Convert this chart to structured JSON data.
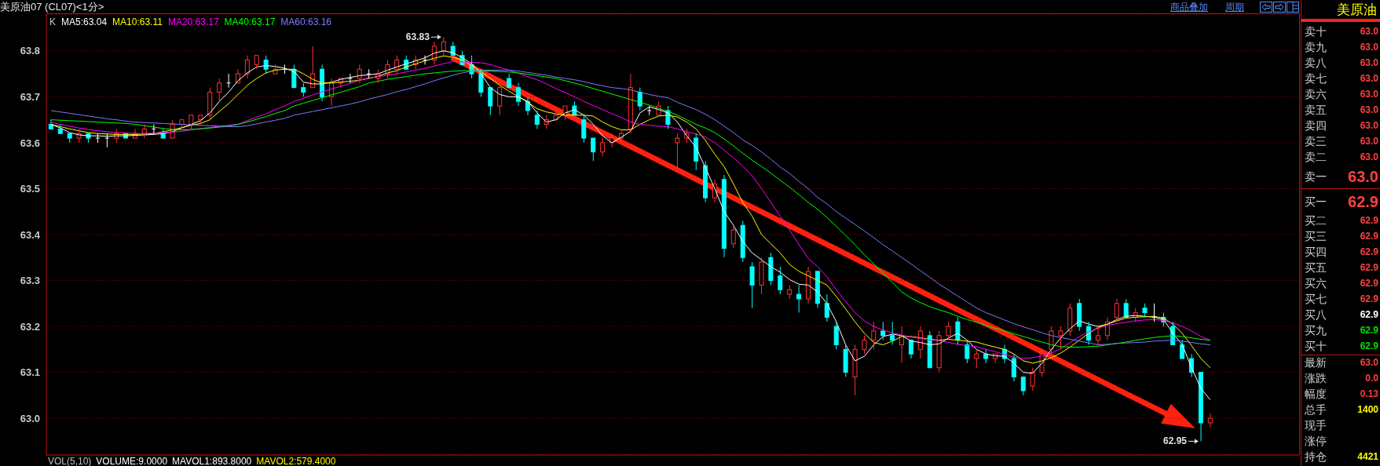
{
  "chart_data": [
    {
      "type": "candlestick",
      "title": "美原油07 (CL07)<1分>",
      "legend_title": "K",
      "legend": "top left",
      "grid": "y",
      "tick_labels": "y",
      "ylim": [
        62.92,
        63.88
      ],
      "yticks": [
        {
          "value": 63.0,
          "label": "63.0"
        },
        63.1,
        63.2,
        63.3,
        63.4,
        63.5,
        63.6,
        63.7,
        63.8
      ],
      "categories": [
        null,
        null,
        null,
        null,
        null,
        null,
        null,
        null,
        null,
        null,
        null,
        null,
        null,
        null,
        null,
        null,
        null,
        null,
        null,
        null,
        null,
        null,
        null,
        null,
        null,
        null,
        null,
        null,
        null,
        null,
        null,
        null,
        null,
        null,
        null,
        null,
        null,
        null,
        null,
        null,
        null,
        null,
        null,
        null,
        null,
        null,
        null,
        null,
        null,
        null,
        null,
        null,
        null,
        null,
        null,
        null,
        null,
        null,
        null,
        null,
        null,
        null,
        null,
        null,
        null,
        null,
        null,
        null,
        null,
        null,
        null,
        null,
        null,
        null,
        null,
        null,
        null,
        null,
        null,
        null,
        null,
        null,
        null,
        null,
        null,
        null,
        null,
        null,
        null,
        null,
        null,
        null,
        null,
        null,
        null,
        null,
        null,
        null,
        null,
        null,
        null,
        null,
        null,
        null,
        null,
        null,
        null,
        null,
        null,
        null,
        null,
        null,
        null,
        null,
        null,
        null,
        null,
        null,
        null,
        null,
        null,
        null,
        null,
        null,
        null,
        null,
        null,
        null,
        null,
        null,
        null,
        null,
        null,
        null
      ],
      "ohlc": [
        [
          63.64,
          63.65,
          63.63,
          63.63
        ],
        [
          63.63,
          63.64,
          63.62,
          63.62
        ],
        [
          63.62,
          63.62,
          63.6,
          63.61
        ],
        [
          63.61,
          63.63,
          63.6,
          63.62
        ],
        [
          63.62,
          63.62,
          63.6,
          63.61
        ],
        [
          63.61,
          63.62,
          63.6,
          63.61
        ],
        [
          63.61,
          63.62,
          63.59,
          63.61
        ],
        [
          63.61,
          63.63,
          63.6,
          63.62
        ],
        [
          63.62,
          63.62,
          63.61,
          63.61
        ],
        [
          63.61,
          63.63,
          63.61,
          63.62
        ],
        [
          63.62,
          63.64,
          63.61,
          63.63
        ],
        [
          63.63,
          63.64,
          63.62,
          63.63
        ],
        [
          63.62,
          63.63,
          63.61,
          63.61
        ],
        [
          63.61,
          63.65,
          63.61,
          63.64
        ],
        [
          63.64,
          63.65,
          63.63,
          63.65
        ],
        [
          63.64,
          63.66,
          63.63,
          63.66
        ],
        [
          63.65,
          63.66,
          63.64,
          63.66
        ],
        [
          63.66,
          63.72,
          63.65,
          63.71
        ],
        [
          63.71,
          63.74,
          63.69,
          63.73
        ],
        [
          63.73,
          63.75,
          63.72,
          63.73
        ],
        [
          63.73,
          63.76,
          63.73,
          63.75
        ],
        [
          63.75,
          63.79,
          63.74,
          63.78
        ],
        [
          63.77,
          63.79,
          63.76,
          63.79
        ],
        [
          63.78,
          63.79,
          63.75,
          63.76
        ],
        [
          63.75,
          63.77,
          63.75,
          63.76
        ],
        [
          63.76,
          63.77,
          63.75,
          63.76
        ],
        [
          63.76,
          63.77,
          63.72,
          63.72
        ],
        [
          63.72,
          63.73,
          63.7,
          63.71
        ],
        [
          63.72,
          63.81,
          63.72,
          63.75
        ],
        [
          63.76,
          63.77,
          63.69,
          63.7
        ],
        [
          63.7,
          63.74,
          63.68,
          63.73
        ],
        [
          63.73,
          63.74,
          63.72,
          63.74
        ],
        [
          63.74,
          63.75,
          63.73,
          63.74
        ],
        [
          63.74,
          63.77,
          63.73,
          63.76
        ],
        [
          63.75,
          63.76,
          63.74,
          63.75
        ],
        [
          63.74,
          63.76,
          63.73,
          63.75
        ],
        [
          63.75,
          63.78,
          63.74,
          63.77
        ],
        [
          63.76,
          63.79,
          63.75,
          63.78
        ],
        [
          63.78,
          63.79,
          63.76,
          63.76
        ],
        [
          63.77,
          63.79,
          63.76,
          63.78
        ],
        [
          63.78,
          63.79,
          63.77,
          63.78
        ],
        [
          63.78,
          63.82,
          63.77,
          63.81
        ],
        [
          63.8,
          63.83,
          63.79,
          63.82
        ],
        [
          63.81,
          63.82,
          63.79,
          63.79
        ],
        [
          63.79,
          63.8,
          63.77,
          63.77
        ],
        [
          63.77,
          63.79,
          63.74,
          63.75
        ],
        [
          63.75,
          63.76,
          63.7,
          63.71
        ],
        [
          63.72,
          63.72,
          63.66,
          63.68
        ],
        [
          63.68,
          63.73,
          63.66,
          63.72
        ],
        [
          63.74,
          63.75,
          63.72,
          63.72
        ],
        [
          63.72,
          63.73,
          63.68,
          63.69
        ],
        [
          63.69,
          63.7,
          63.66,
          63.67
        ],
        [
          63.66,
          63.67,
          63.63,
          63.64
        ],
        [
          63.64,
          63.66,
          63.63,
          63.65
        ],
        [
          63.65,
          63.67,
          63.65,
          63.66
        ],
        [
          63.66,
          63.68,
          63.65,
          63.68
        ],
        [
          63.68,
          63.69,
          63.66,
          63.66
        ],
        [
          63.65,
          63.66,
          63.6,
          63.61
        ],
        [
          63.61,
          63.61,
          63.56,
          63.58
        ],
        [
          63.58,
          63.61,
          63.57,
          63.6
        ],
        [
          63.6,
          63.62,
          63.59,
          63.61
        ],
        [
          63.61,
          63.63,
          63.6,
          63.62
        ],
        [
          63.63,
          63.75,
          63.62,
          63.72
        ],
        [
          63.71,
          63.72,
          63.67,
          63.68
        ],
        [
          63.67,
          63.68,
          63.66,
          63.67
        ],
        [
          63.66,
          63.69,
          63.66,
          63.68
        ],
        [
          63.67,
          63.68,
          63.63,
          63.64
        ],
        [
          63.6,
          63.62,
          63.54,
          63.61
        ],
        [
          63.61,
          63.63,
          63.6,
          63.62
        ],
        [
          63.61,
          63.62,
          63.54,
          63.56
        ],
        [
          63.55,
          63.56,
          63.47,
          63.48
        ],
        [
          63.48,
          63.52,
          63.47,
          63.51
        ],
        [
          63.52,
          63.53,
          63.35,
          63.37
        ],
        [
          63.38,
          63.42,
          63.37,
          63.41
        ],
        [
          63.42,
          63.43,
          63.34,
          63.35
        ],
        [
          63.33,
          63.34,
          63.24,
          63.29
        ],
        [
          63.29,
          63.35,
          63.27,
          63.34
        ],
        [
          63.35,
          63.36,
          63.29,
          63.3
        ],
        [
          63.31,
          63.33,
          63.27,
          63.28
        ],
        [
          63.27,
          63.29,
          63.26,
          63.28
        ],
        [
          63.27,
          63.29,
          63.23,
          63.26
        ],
        [
          63.26,
          63.33,
          63.25,
          63.32
        ],
        [
          63.32,
          63.32,
          63.24,
          63.25
        ],
        [
          63.25,
          63.27,
          63.21,
          63.22
        ],
        [
          63.2,
          63.21,
          63.15,
          63.16
        ],
        [
          63.15,
          63.16,
          63.09,
          63.1
        ],
        [
          63.09,
          63.16,
          63.05,
          63.15
        ],
        [
          63.15,
          63.18,
          63.14,
          63.17
        ],
        [
          63.17,
          63.21,
          63.15,
          63.19
        ],
        [
          63.19,
          63.21,
          63.17,
          63.18
        ],
        [
          63.18,
          63.21,
          63.16,
          63.17
        ],
        [
          63.16,
          63.2,
          63.12,
          63.18
        ],
        [
          63.17,
          63.17,
          63.13,
          63.14
        ],
        [
          63.15,
          63.2,
          63.13,
          63.19
        ],
        [
          63.18,
          63.19,
          63.11,
          63.11
        ],
        [
          63.11,
          63.19,
          63.1,
          63.18
        ],
        [
          63.18,
          63.21,
          63.17,
          63.2
        ],
        [
          63.21,
          63.22,
          63.16,
          63.17
        ],
        [
          63.16,
          63.17,
          63.12,
          63.13
        ],
        [
          63.13,
          63.15,
          63.11,
          63.14
        ],
        [
          63.14,
          63.15,
          63.12,
          63.13
        ],
        [
          63.13,
          63.14,
          63.12,
          63.14
        ],
        [
          63.15,
          63.16,
          63.12,
          63.13
        ],
        [
          63.13,
          63.14,
          63.08,
          63.09
        ],
        [
          63.09,
          63.09,
          63.05,
          63.06
        ],
        [
          63.07,
          63.11,
          63.06,
          63.1
        ],
        [
          63.1,
          63.15,
          63.09,
          63.14
        ],
        [
          63.15,
          63.2,
          63.14,
          63.19
        ],
        [
          63.18,
          63.2,
          63.15,
          63.19
        ],
        [
          63.19,
          63.25,
          63.18,
          63.24
        ],
        [
          63.25,
          63.26,
          63.19,
          63.2
        ],
        [
          63.2,
          63.21,
          63.16,
          63.17
        ],
        [
          63.17,
          63.2,
          63.16,
          63.18
        ],
        [
          63.18,
          63.22,
          63.17,
          63.21
        ],
        [
          63.22,
          63.26,
          63.21,
          63.25
        ],
        [
          63.25,
          63.26,
          63.22,
          63.22
        ],
        [
          63.22,
          63.24,
          63.21,
          63.23
        ],
        [
          63.24,
          63.25,
          63.22,
          63.23
        ],
        [
          63.22,
          63.25,
          63.21,
          63.22
        ],
        [
          63.22,
          63.23,
          63.2,
          63.21
        ],
        [
          63.2,
          63.21,
          63.16,
          63.16
        ],
        [
          63.16,
          63.17,
          63.13,
          63.13
        ],
        [
          63.13,
          63.14,
          63.09,
          63.1
        ],
        [
          63.1,
          63.1,
          62.95,
          62.99
        ],
        [
          62.99,
          63.01,
          62.98,
          63.0
        ],
        null,
        null,
        null,
        null,
        null,
        null,
        null,
        null,
        null
      ],
      "series": [
        {
          "name": "MA5:63.04",
          "type": "line",
          "color": "#ffffff",
          "values": [
            63.64,
            63.632,
            63.622,
            63.617,
            63.615,
            63.615,
            63.614,
            63.615,
            63.615,
            63.616,
            63.617,
            63.618,
            63.62,
            63.624,
            63.632,
            63.64,
            63.648,
            63.665,
            63.69,
            63.71,
            63.735,
            63.752,
            63.765,
            63.768,
            63.766,
            63.762,
            63.755,
            63.732,
            63.728,
            63.728,
            63.732,
            63.738,
            63.742,
            63.746,
            63.748,
            63.75,
            63.758,
            63.765,
            63.772,
            63.778,
            63.785,
            63.795,
            63.8,
            63.796,
            63.785,
            63.772,
            63.75,
            63.72,
            63.705,
            63.7,
            63.7,
            63.69,
            63.665,
            63.645,
            63.65,
            63.665,
            63.672,
            63.66,
            63.64,
            63.615,
            63.6,
            63.612,
            63.625,
            63.665,
            63.678,
            63.672,
            63.665,
            63.645,
            63.615,
            63.59,
            63.545,
            63.5,
            63.45,
            63.42,
            63.385,
            63.36,
            63.345,
            63.33,
            63.318,
            63.302,
            63.292,
            63.29,
            63.275,
            63.25,
            63.21,
            63.16,
            63.125,
            63.135,
            63.16,
            63.178,
            63.183,
            63.18,
            63.168,
            63.165,
            63.16,
            63.162,
            63.175,
            63.185,
            63.17,
            63.15,
            63.14,
            63.136,
            63.135,
            63.12,
            63.1,
            63.098,
            63.12,
            63.15,
            63.175,
            63.195,
            63.212,
            63.205,
            63.2,
            63.205,
            63.215,
            63.222,
            63.224,
            63.222,
            63.22,
            63.215,
            63.185,
            63.16,
            63.11,
            63.065,
            63.04,
            null,
            null,
            null,
            null,
            null,
            null,
            null,
            null,
            null
          ]
        },
        {
          "name": "MA10:63.11",
          "type": "line",
          "color": "#ffff00",
          "values": [
            63.64,
            63.635,
            63.63,
            63.626,
            63.622,
            63.62,
            63.619,
            63.618,
            63.618,
            63.618,
            63.619,
            63.62,
            63.624,
            63.628,
            63.633,
            63.638,
            63.642,
            63.65,
            63.668,
            63.685,
            63.705,
            63.725,
            63.74,
            63.752,
            63.758,
            63.76,
            63.76,
            63.75,
            63.738,
            63.73,
            63.73,
            63.732,
            63.734,
            63.736,
            63.74,
            63.745,
            63.752,
            63.757,
            63.765,
            63.772,
            63.778,
            63.784,
            63.789,
            63.786,
            63.78,
            63.768,
            63.755,
            63.74,
            63.725,
            63.712,
            63.7,
            63.688,
            63.674,
            63.667,
            63.663,
            63.66,
            63.66,
            63.66,
            63.658,
            63.645,
            63.635,
            63.628,
            63.628,
            63.64,
            63.65,
            63.658,
            63.66,
            63.656,
            63.645,
            63.63,
            63.605,
            63.575,
            63.548,
            63.51,
            63.47,
            63.44,
            63.4,
            63.38,
            63.36,
            63.335,
            63.32,
            63.31,
            63.3,
            63.29,
            63.265,
            63.238,
            63.21,
            63.185,
            63.165,
            63.16,
            63.168,
            63.178,
            63.178,
            63.175,
            63.172,
            63.17,
            63.172,
            63.17,
            63.168,
            63.166,
            63.16,
            63.155,
            63.15,
            63.14,
            63.125,
            63.12,
            63.125,
            63.132,
            63.142,
            63.155,
            63.17,
            63.185,
            63.198,
            63.205,
            63.212,
            63.218,
            63.22,
            63.221,
            63.222,
            63.218,
            63.205,
            63.185,
            63.158,
            63.13,
            63.11,
            null,
            null,
            null,
            null,
            null,
            null,
            null,
            null,
            null
          ]
        },
        {
          "name": "MA20:63.17",
          "type": "line",
          "color": "#ff00ff",
          "values": [
            63.645,
            63.64,
            63.636,
            63.632,
            63.629,
            63.626,
            63.624,
            63.622,
            63.621,
            63.62,
            63.62,
            63.621,
            63.622,
            63.623,
            63.625,
            63.628,
            63.631,
            63.633,
            63.636,
            63.638,
            63.64,
            63.648,
            63.656,
            63.663,
            63.672,
            63.68,
            63.69,
            63.697,
            63.704,
            63.711,
            63.717,
            63.723,
            63.729,
            63.736,
            63.741,
            63.744,
            63.747,
            63.75,
            63.754,
            63.758,
            63.762,
            63.767,
            63.772,
            63.777,
            63.776,
            63.775,
            63.774,
            63.77,
            63.764,
            63.758,
            63.751,
            63.744,
            63.737,
            63.728,
            63.718,
            63.709,
            63.7,
            63.69,
            63.681,
            63.672,
            63.663,
            63.655,
            63.645,
            63.64,
            63.638,
            63.636,
            63.635,
            63.63,
            63.624,
            63.619,
            63.612,
            63.6,
            63.584,
            63.567,
            63.549,
            63.528,
            63.5,
            63.47,
            63.44,
            63.41,
            63.378,
            63.348,
            63.33,
            63.308,
            63.28,
            63.254,
            63.23,
            63.212,
            63.2,
            63.192,
            63.186,
            63.181,
            63.177,
            63.174,
            63.171,
            63.169,
            63.165,
            63.161,
            63.158,
            63.156,
            63.15,
            63.145,
            63.139,
            63.133,
            63.13,
            63.132,
            63.136,
            63.142,
            63.152,
            63.165,
            63.178,
            63.188,
            63.196,
            63.202,
            63.206,
            63.209,
            63.212,
            63.214,
            63.215,
            63.213,
            63.207,
            63.2,
            63.19,
            63.178,
            63.17,
            null,
            null,
            null,
            null,
            null,
            null,
            null,
            null,
            null
          ]
        },
        {
          "name": "MA40:63.17",
          "type": "line",
          "color": "#00ff00",
          "values": [
            63.65,
            63.649,
            63.648,
            63.647,
            63.646,
            63.645,
            63.644,
            63.643,
            63.642,
            63.64,
            63.637,
            63.634,
            63.631,
            63.629,
            63.628,
            63.629,
            63.63,
            63.632,
            63.634,
            63.636,
            63.64,
            63.645,
            63.651,
            63.657,
            63.664,
            63.67,
            63.68,
            63.686,
            63.692,
            63.698,
            63.704,
            63.71,
            63.716,
            63.722,
            63.73,
            63.734,
            63.738,
            63.741,
            63.744,
            63.747,
            63.75,
            63.752,
            63.754,
            63.756,
            63.757,
            63.757,
            63.757,
            63.756,
            63.755,
            63.754,
            63.752,
            63.749,
            63.746,
            63.743,
            63.74,
            63.735,
            63.73,
            63.724,
            63.718,
            63.712,
            63.706,
            63.7,
            63.694,
            63.688,
            63.682,
            63.675,
            63.668,
            63.66,
            63.65,
            63.64,
            63.632,
            63.622,
            63.608,
            63.593,
            63.577,
            63.562,
            63.548,
            63.534,
            63.518,
            63.503,
            63.487,
            63.47,
            63.455,
            63.437,
            63.418,
            63.398,
            63.378,
            63.356,
            63.336,
            63.316,
            63.296,
            63.275,
            63.262,
            63.252,
            63.243,
            63.236,
            63.23,
            63.222,
            63.215,
            63.209,
            63.202,
            63.196,
            63.19,
            63.184,
            63.178,
            63.172,
            63.166,
            63.16,
            63.156,
            63.155,
            63.155,
            63.156,
            63.157,
            63.16,
            63.163,
            63.166,
            63.17,
            63.173,
            63.176,
            63.178,
            63.18,
            63.178,
            63.175,
            63.172,
            63.17,
            null,
            null,
            null,
            null,
            null,
            null,
            null,
            null,
            null
          ]
        },
        {
          "name": "MA60:63.16",
          "type": "line",
          "color": "#7b7bff",
          "values": [
            63.67,
            63.667,
            63.664,
            63.661,
            63.658,
            63.655,
            63.652,
            63.65,
            63.647,
            63.645,
            63.644,
            63.643,
            63.642,
            63.641,
            63.64,
            63.639,
            63.638,
            63.637,
            63.636,
            63.635,
            63.635,
            63.637,
            63.641,
            63.645,
            63.649,
            63.653,
            63.66,
            63.664,
            63.668,
            63.672,
            63.676,
            63.68,
            63.684,
            63.689,
            63.695,
            63.7,
            63.705,
            63.711,
            63.716,
            63.722,
            63.728,
            63.735,
            63.741,
            63.747,
            63.752,
            63.756,
            63.758,
            63.758,
            63.758,
            63.758,
            63.756,
            63.753,
            63.75,
            63.747,
            63.743,
            63.74,
            63.737,
            63.733,
            63.728,
            63.724,
            63.72,
            63.718,
            63.715,
            63.71,
            63.705,
            63.701,
            63.698,
            63.688,
            63.68,
            63.672,
            63.662,
            63.65,
            63.636,
            63.622,
            63.606,
            63.594,
            63.58,
            63.564,
            63.547,
            63.533,
            63.516,
            63.5,
            63.481,
            63.467,
            63.45,
            63.436,
            63.422,
            63.408,
            63.393,
            63.378,
            63.364,
            63.35,
            63.336,
            63.321,
            63.307,
            63.292,
            63.279,
            63.266,
            63.253,
            63.24,
            63.23,
            63.222,
            63.214,
            63.206,
            63.199,
            63.193,
            63.186,
            63.18,
            63.176,
            63.172,
            63.168,
            63.164,
            63.16,
            63.161,
            63.163,
            63.164,
            63.165,
            63.166,
            63.168,
            63.169,
            63.17,
            63.168,
            63.165,
            63.162,
            63.16,
            null,
            null,
            null,
            null,
            null,
            null,
            null,
            null,
            null
          ]
        }
      ],
      "annotations": [
        "63.83",
        "62.95",
        "VOL(5,10)",
        "VOLUME:9.0000",
        "MAVOL1:893.8000",
        "MAVOL2:579.4000",
        "商品叠加",
        "周期"
      ]
    },
    {
      "type": "other",
      "title": "美原油",
      "categories": [
        "卖十",
        "卖九",
        "卖八",
        "卖七",
        "卖六",
        "卖五",
        "卖四",
        "卖三",
        "卖二",
        "卖一",
        "买一",
        "买二",
        "买三",
        "买四",
        "买五",
        "买六",
        "买七",
        "买八",
        "买九",
        "买十",
        "最新",
        "涨跌",
        "幅度",
        "总手",
        "现手",
        "涨停",
        "持仓"
      ],
      "value_labels": [
        "63.0",
        "63.0",
        "63.0",
        "63.0",
        "63.0",
        "63.0",
        "63.0",
        "63.0",
        "63.0",
        "63.0",
        "62.9",
        "62.9",
        "62.9",
        "62.9",
        "62.9",
        "62.9",
        "62.9",
        "62.9",
        "62.9",
        "62.9",
        "63.0",
        "0.0",
        "0.13",
        "1400",
        null,
        null,
        "4421"
      ],
      "colors": [
        "#ff4040",
        "#ff4040",
        "#ff4040",
        "#ff4040",
        "#ff4040",
        "#ff4040",
        "#ff4040",
        "#ff4040",
        "#ff4040",
        "#ff4040",
        "#ff4040",
        "#ff4040",
        "#ff4040",
        "#ff4040",
        "#ff4040",
        "#ff4040",
        "#ff4040",
        "#ffffff",
        "#00e000",
        "#00e000",
        "#ff4040",
        "#ff4040",
        "#ff4040",
        "#ffff00",
        null,
        null,
        "#ffff00"
      ]
    }
  ]
}
